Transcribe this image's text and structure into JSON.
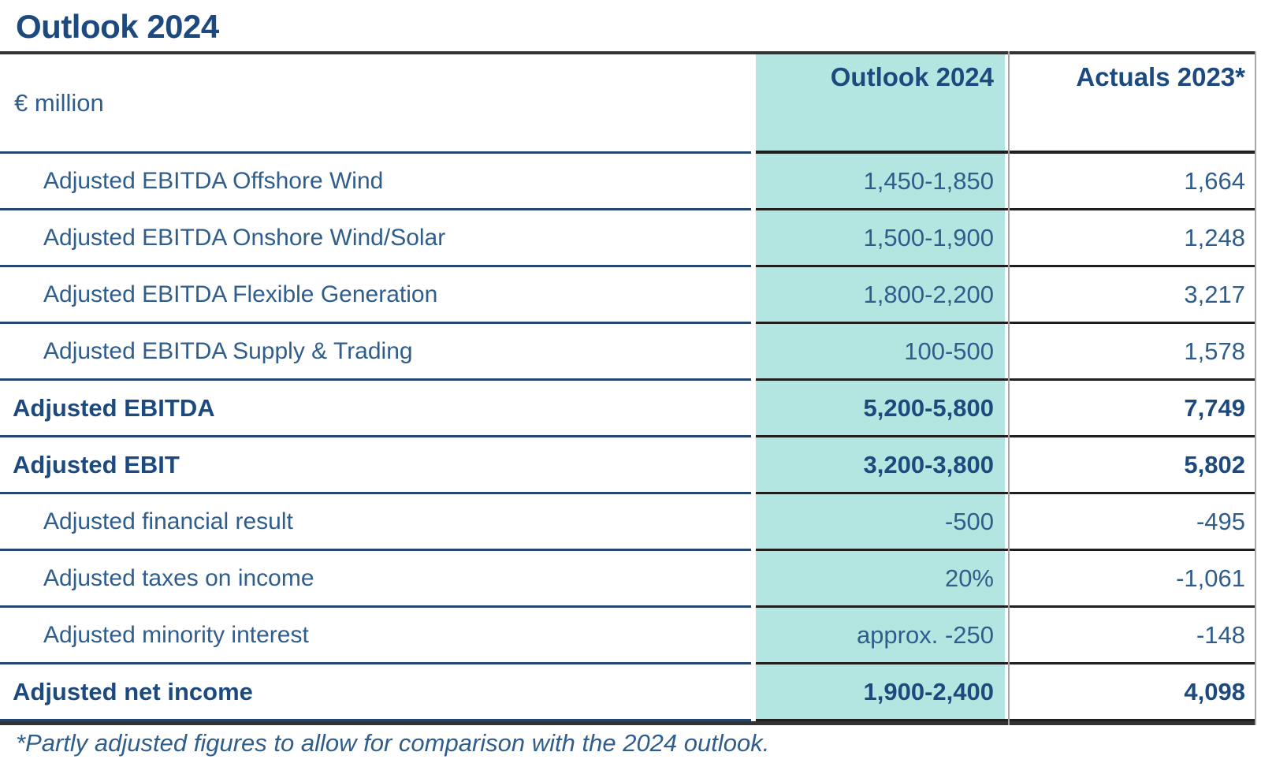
{
  "title": "Outlook 2024",
  "table": {
    "unit_label": "€ million",
    "columns": [
      {
        "label": "Outlook 2024"
      },
      {
        "label": "Actuals 2023*"
      }
    ],
    "rows": [
      {
        "label": "Adjusted EBITDA Offshore Wind",
        "outlook": "1,450-1,850",
        "actuals": "1,664",
        "style": "sub"
      },
      {
        "label": "Adjusted EBITDA Onshore Wind/Solar",
        "outlook": "1,500-1,900",
        "actuals": "1,248",
        "style": "sub"
      },
      {
        "label": "Adjusted EBITDA Flexible Generation",
        "outlook": "1,800-2,200",
        "actuals": "3,217",
        "style": "sub"
      },
      {
        "label": "Adjusted EBITDA Supply & Trading",
        "outlook": "100-500",
        "actuals": "1,578",
        "style": "sub"
      },
      {
        "label": "Adjusted EBITDA",
        "outlook": "5,200-5,800",
        "actuals": "7,749",
        "style": "total"
      },
      {
        "label": "Adjusted EBIT",
        "outlook": "3,200-3,800",
        "actuals": "5,802",
        "style": "total"
      },
      {
        "label": "Adjusted financial result",
        "outlook": "-500",
        "actuals": "-495",
        "style": "sub"
      },
      {
        "label": "Adjusted taxes on income",
        "outlook": "20%",
        "actuals": "-1,061",
        "style": "sub"
      },
      {
        "label": "Adjusted minority interest",
        "outlook": "approx. -250",
        "actuals": "-148",
        "style": "sub"
      },
      {
        "label": "Adjusted net income",
        "outlook": "1,900-2,400",
        "actuals": "4,098",
        "style": "total"
      }
    ]
  },
  "footnote": "*Partly adjusted figures to allow for comparison with the 2024 outlook.",
  "colors": {
    "highlight_teal": "#b3e6e0",
    "navy_text": "#1d4a7e",
    "body_text": "#2f5d8c",
    "navy_line": "#27456f",
    "dark_line": "#1f1f1f",
    "frame_line": "#333333",
    "divider_gray": "#a6a6a6"
  }
}
